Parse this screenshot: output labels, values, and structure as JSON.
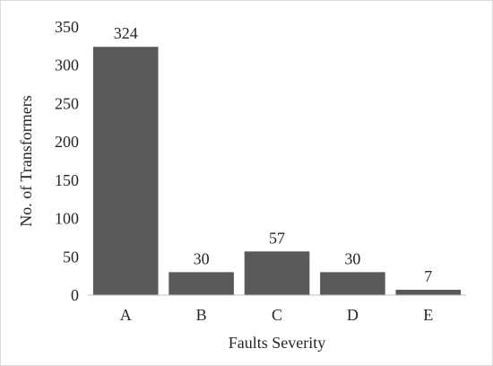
{
  "chart_data": {
    "type": "bar",
    "title": "",
    "xlabel": "Faults Severity",
    "ylabel": "No. of Transformers",
    "categories": [
      "A",
      "B",
      "C",
      "D",
      "E"
    ],
    "values": [
      324,
      30,
      57,
      30,
      7
    ],
    "value_labels": [
      "324",
      "30",
      "57",
      "30",
      "7"
    ],
    "ylim": [
      0,
      350
    ],
    "yticks": [
      0,
      50,
      100,
      150,
      200,
      250,
      300,
      350
    ],
    "ytick_labels": [
      "0",
      "50",
      "100",
      "150",
      "200",
      "250",
      "300",
      "350"
    ],
    "grid": false,
    "legend": "none",
    "bar_color": "#595959",
    "axis_color": "#bfbfbf",
    "text_color": "#262626"
  }
}
